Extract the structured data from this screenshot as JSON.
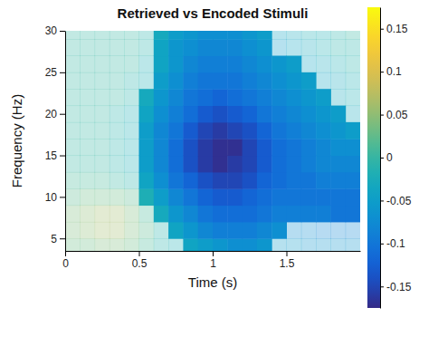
{
  "chart_data": {
    "type": "heatmap",
    "title": "Retrieved vs Encoded Stimuli",
    "x_label": "Time (s)",
    "y_label": "Frequency (Hz)",
    "color": "parula",
    "x": [
      0.05,
      0.15,
      0.25,
      0.35,
      0.45,
      0.55,
      0.65,
      0.75,
      0.85,
      0.95,
      1.05,
      1.15,
      1.25,
      1.35,
      1.45,
      1.55,
      1.65,
      1.75,
      1.85,
      1.95
    ],
    "y": [
      4,
      6,
      8,
      10,
      12,
      14,
      16,
      18,
      20,
      22,
      24,
      26,
      28,
      30
    ],
    "values": [
      [
        0.03,
        0.03,
        0.04,
        0.04,
        0.03,
        0.01,
        -0.01,
        -0.02,
        -0.04,
        -0.05,
        -0.06,
        -0.07,
        -0.07,
        -0.06,
        -0.05,
        -0.05,
        -0.06,
        -0.06,
        -0.06,
        -0.06
      ],
      [
        0.04,
        0.05,
        0.06,
        0.06,
        0.04,
        0.02,
        -0.01,
        -0.04,
        -0.06,
        -0.08,
        -0.09,
        -0.09,
        -0.09,
        -0.08,
        -0.07,
        -0.07,
        -0.07,
        -0.08,
        -0.08,
        -0.08
      ],
      [
        0.04,
        0.05,
        0.06,
        0.06,
        0.04,
        0.01,
        -0.03,
        -0.06,
        -0.08,
        -0.1,
        -0.11,
        -0.11,
        -0.11,
        -0.1,
        -0.09,
        -0.09,
        -0.09,
        -0.09,
        -0.1,
        -0.1
      ],
      [
        0.02,
        0.03,
        0.03,
        0.03,
        0.02,
        -0.02,
        -0.05,
        -0.08,
        -0.1,
        -0.12,
        -0.13,
        -0.13,
        -0.12,
        -0.11,
        -0.1,
        -0.1,
        -0.1,
        -0.1,
        -0.1,
        -0.1
      ],
      [
        0.01,
        0.01,
        0.01,
        0,
        -0.01,
        -0.04,
        -0.07,
        -0.1,
        -0.12,
        -0.14,
        -0.15,
        -0.15,
        -0.14,
        -0.12,
        -0.11,
        -0.1,
        -0.1,
        -0.09,
        -0.09,
        -0.09
      ],
      [
        0,
        0,
        0,
        -0.01,
        -0.02,
        -0.05,
        -0.08,
        -0.11,
        -0.14,
        -0.16,
        -0.17,
        -0.16,
        -0.15,
        -0.13,
        -0.11,
        -0.1,
        -0.09,
        -0.08,
        -0.08,
        -0.08
      ],
      [
        0,
        0,
        0,
        -0.01,
        -0.02,
        -0.05,
        -0.08,
        -0.11,
        -0.14,
        -0.16,
        -0.17,
        -0.17,
        -0.15,
        -0.13,
        -0.11,
        -0.1,
        -0.09,
        -0.08,
        -0.07,
        -0.07
      ],
      [
        0,
        0,
        0,
        -0.01,
        -0.02,
        -0.05,
        -0.08,
        -0.1,
        -0.13,
        -0.15,
        -0.16,
        -0.15,
        -0.14,
        -0.12,
        -0.1,
        -0.09,
        -0.08,
        -0.07,
        -0.06,
        -0.05
      ],
      [
        0,
        0,
        0,
        -0.01,
        -0.02,
        -0.04,
        -0.07,
        -0.09,
        -0.11,
        -0.13,
        -0.14,
        -0.13,
        -0.12,
        -0.1,
        -0.09,
        -0.08,
        -0.07,
        -0.06,
        -0.05,
        -0.03
      ],
      [
        0,
        0,
        0,
        0,
        -0.01,
        -0.03,
        -0.06,
        -0.08,
        -0.1,
        -0.11,
        -0.12,
        -0.11,
        -0.1,
        -0.09,
        -0.08,
        -0.07,
        -0.06,
        -0.05,
        -0.03,
        -0.02
      ],
      [
        0,
        0,
        0,
        0,
        -0.01,
        -0.02,
        -0.05,
        -0.07,
        -0.09,
        -0.1,
        -0.1,
        -0.1,
        -0.09,
        -0.08,
        -0.07,
        -0.06,
        -0.05,
        -0.04,
        -0.03,
        -0.02
      ],
      [
        0,
        0,
        0,
        0,
        0,
        -0.02,
        -0.04,
        -0.06,
        -0.08,
        -0.09,
        -0.09,
        -0.09,
        -0.08,
        -0.07,
        -0.06,
        -0.05,
        -0.04,
        -0.03,
        -0.02,
        -0.01
      ],
      [
        0,
        0,
        0,
        0,
        0,
        -0.01,
        -0.04,
        -0.06,
        -0.07,
        -0.08,
        -0.08,
        -0.08,
        -0.07,
        -0.06,
        -0.05,
        -0.04,
        -0.03,
        -0.02,
        -0.01,
        -0.01
      ],
      [
        0,
        0,
        0,
        0,
        0,
        -0.01,
        -0.03,
        -0.05,
        -0.06,
        -0.07,
        -0.07,
        -0.07,
        -0.06,
        -0.05,
        -0.04,
        -0.03,
        -0.02,
        -0.02,
        -0.01,
        0
      ]
    ],
    "significant": [
      [
        0,
        0,
        0,
        0,
        0,
        0,
        0,
        0,
        1,
        1,
        1,
        1,
        1,
        1,
        0,
        0,
        0,
        0,
        0,
        0
      ],
      [
        0,
        0,
        0,
        0,
        0,
        0,
        0,
        1,
        1,
        1,
        1,
        1,
        1,
        1,
        1,
        0,
        0,
        0,
        0,
        0
      ],
      [
        0,
        0,
        0,
        0,
        0,
        0,
        1,
        1,
        1,
        1,
        1,
        1,
        1,
        1,
        1,
        1,
        1,
        1,
        1,
        1
      ],
      [
        0,
        0,
        0,
        0,
        0,
        1,
        1,
        1,
        1,
        1,
        1,
        1,
        1,
        1,
        1,
        1,
        1,
        1,
        1,
        1
      ],
      [
        0,
        0,
        0,
        0,
        0,
        1,
        1,
        1,
        1,
        1,
        1,
        1,
        1,
        1,
        1,
        1,
        1,
        1,
        1,
        1
      ],
      [
        0,
        0,
        0,
        0,
        0,
        1,
        1,
        1,
        1,
        1,
        1,
        1,
        1,
        1,
        1,
        1,
        1,
        1,
        1,
        1
      ],
      [
        0,
        0,
        0,
        0,
        0,
        1,
        1,
        1,
        1,
        1,
        1,
        1,
        1,
        1,
        1,
        1,
        1,
        1,
        1,
        1
      ],
      [
        0,
        0,
        0,
        0,
        0,
        1,
        1,
        1,
        1,
        1,
        1,
        1,
        1,
        1,
        1,
        1,
        1,
        1,
        1,
        1
      ],
      [
        0,
        0,
        0,
        0,
        0,
        1,
        1,
        1,
        1,
        1,
        1,
        1,
        1,
        1,
        1,
        1,
        1,
        1,
        1,
        0
      ],
      [
        0,
        0,
        0,
        0,
        0,
        1,
        1,
        1,
        1,
        1,
        1,
        1,
        1,
        1,
        1,
        1,
        1,
        1,
        0,
        0
      ],
      [
        0,
        0,
        0,
        0,
        0,
        0,
        1,
        1,
        1,
        1,
        1,
        1,
        1,
        1,
        1,
        1,
        1,
        0,
        0,
        0
      ],
      [
        0,
        0,
        0,
        0,
        0,
        0,
        1,
        1,
        1,
        1,
        1,
        1,
        1,
        1,
        1,
        1,
        0,
        0,
        0,
        0
      ],
      [
        0,
        0,
        0,
        0,
        0,
        0,
        1,
        1,
        1,
        1,
        1,
        1,
        1,
        1,
        0,
        0,
        0,
        0,
        0,
        0
      ],
      [
        0,
        0,
        0,
        0,
        0,
        0,
        1,
        1,
        1,
        1,
        1,
        1,
        1,
        1,
        0,
        0,
        0,
        0,
        0,
        0
      ]
    ],
    "xlim": [
      0,
      2
    ],
    "ylim": [
      3.5,
      30
    ],
    "xticks": [
      0,
      0.5,
      1,
      1.5
    ],
    "yticks": [
      5,
      10,
      15,
      20,
      25,
      30
    ],
    "color_range": [
      -0.175,
      0.175
    ],
    "color_ticks": [
      -0.15,
      -0.1,
      -0.05,
      0,
      0.05,
      0.1,
      0.15
    ]
  }
}
